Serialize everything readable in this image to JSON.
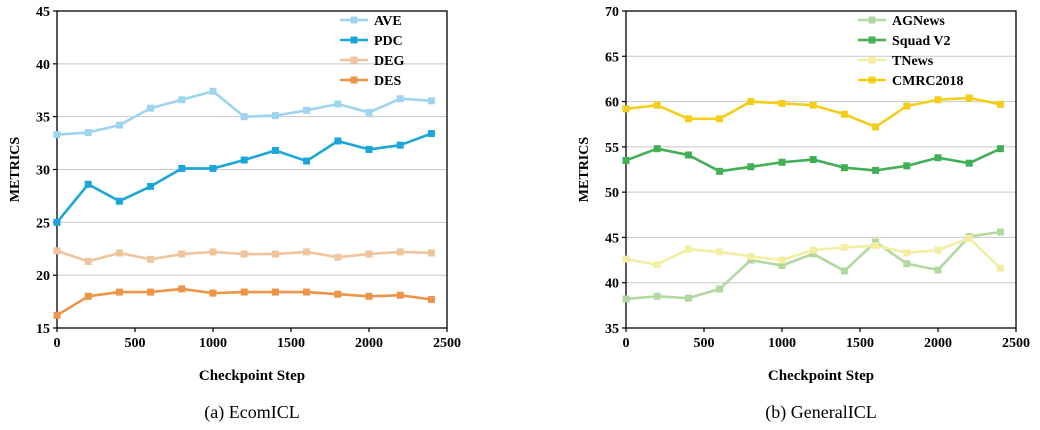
{
  "chart_data": [
    {
      "type": "line",
      "caption": "(a)  EcomICL",
      "xlabel": "Checkpoint Step",
      "ylabel": "METRICS",
      "xlim": [
        0,
        2500
      ],
      "ylim": [
        15,
        45
      ],
      "xticks": [
        0,
        500,
        1000,
        1500,
        2000,
        2500
      ],
      "yticks": [
        15,
        20,
        25,
        30,
        35,
        40,
        45
      ],
      "grid": true,
      "legend_position": "top-right",
      "x": [
        0,
        200,
        400,
        600,
        800,
        1000,
        1200,
        1400,
        1600,
        1800,
        2000,
        2200,
        2400
      ],
      "series": [
        {
          "name": "AVE",
          "color": "#9dd5ef",
          "values": [
            33.3,
            33.5,
            34.2,
            35.8,
            36.6,
            37.4,
            35.0,
            35.1,
            35.6,
            36.2,
            35.4,
            36.7,
            36.5
          ]
        },
        {
          "name": "PDC",
          "color": "#1ba6d8",
          "values": [
            25.0,
            28.6,
            27.0,
            28.4,
            30.1,
            30.1,
            30.9,
            31.8,
            30.8,
            32.7,
            31.9,
            32.3,
            33.4
          ]
        },
        {
          "name": "DEG",
          "color": "#f0c49c",
          "values": [
            22.3,
            21.3,
            22.1,
            21.5,
            22.0,
            22.2,
            22.0,
            22.0,
            22.2,
            21.7,
            22.0,
            22.2,
            22.1
          ]
        },
        {
          "name": "DES",
          "color": "#ec9447",
          "values": [
            16.2,
            18.0,
            18.4,
            18.4,
            18.7,
            18.3,
            18.4,
            18.4,
            18.4,
            18.2,
            18.0,
            18.1,
            17.7
          ]
        }
      ]
    },
    {
      "type": "line",
      "caption": "(b)  GeneralICL",
      "xlabel": "Checkpoint Step",
      "ylabel": "METRICS",
      "xlim": [
        0,
        2500
      ],
      "ylim": [
        35,
        70
      ],
      "xticks": [
        0,
        500,
        1000,
        1500,
        2000,
        2500
      ],
      "yticks": [
        35,
        40,
        45,
        50,
        55,
        60,
        65,
        70
      ],
      "grid": true,
      "legend_position": "top-right",
      "x": [
        0,
        200,
        400,
        600,
        800,
        1000,
        1200,
        1400,
        1600,
        1800,
        2000,
        2200,
        2400
      ],
      "series": [
        {
          "name": "AGNews",
          "color": "#b2d8a2",
          "values": [
            38.2,
            38.5,
            38.3,
            39.3,
            42.5,
            41.9,
            43.2,
            41.3,
            44.5,
            42.1,
            41.4,
            45.1,
            45.6
          ]
        },
        {
          "name": "Squad V2",
          "color": "#42ae55",
          "values": [
            53.5,
            54.8,
            54.1,
            52.3,
            52.8,
            53.3,
            53.6,
            52.7,
            52.4,
            52.9,
            53.8,
            53.2,
            54.8
          ]
        },
        {
          "name": "TNews",
          "color": "#f4eea2",
          "values": [
            42.6,
            42.0,
            43.7,
            43.4,
            42.9,
            42.5,
            43.6,
            43.9,
            44.1,
            43.3,
            43.6,
            44.9,
            41.6
          ]
        },
        {
          "name": "CMRC2018",
          "color": "#f3cf1c",
          "values": [
            59.2,
            59.6,
            58.1,
            58.1,
            60.0,
            59.8,
            59.6,
            58.6,
            57.2,
            59.5,
            60.2,
            60.4,
            59.7
          ]
        }
      ]
    }
  ]
}
